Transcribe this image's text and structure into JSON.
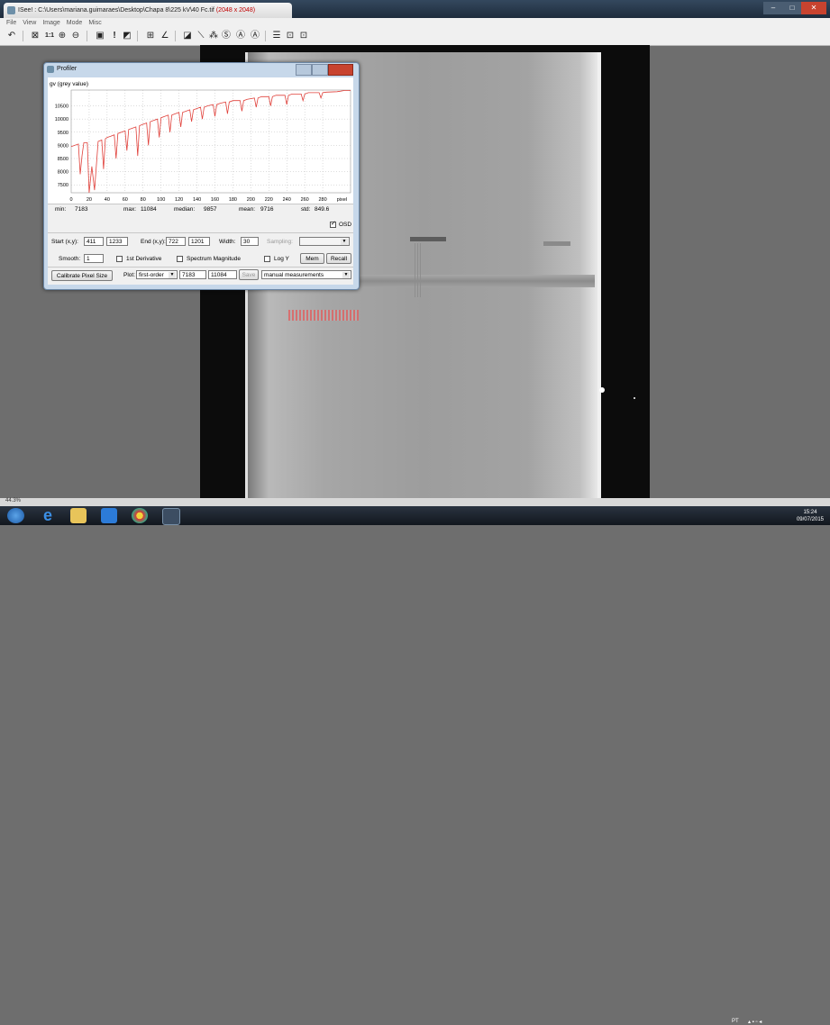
{
  "window": {
    "title_prefix": "ISee! : C:\\Users\\mariana.guimaraes\\Desktop\\Chapa 8\\225 kV\\40 Fc.tif",
    "title_size": "(2048 x 2048)"
  },
  "menu": [
    "File",
    "View",
    "Image",
    "Mode",
    "Misc"
  ],
  "toolbar": {
    "zoom_1to1": "1:1"
  },
  "profiler": {
    "title": "Profiler",
    "y_axis_label": "gv (grey value)",
    "stats": {
      "min_label": "min:",
      "min": "7183",
      "max_label": "max:",
      "max": "11084",
      "median_label": "median:",
      "median": "9857",
      "mean_label": "mean:",
      "mean": "9716",
      "std_label": "std:",
      "std": "849.6"
    },
    "osd_label": "OSD",
    "start_label": "Start (x,y):",
    "start_x": "411",
    "start_y": "1233",
    "end_label": "End (x,y):",
    "end_x": "722",
    "end_y": "1201",
    "width_label": "Width:",
    "width": "30",
    "sampling_label": "Sampling:",
    "smooth_label": "Smooth:",
    "smooth": "1",
    "first_derivative_label": "1st Derivative",
    "spectrum_label": "Spectrum Magnitude",
    "logy_label": "Log Y",
    "mem_button": "Mem",
    "recall_button": "Recall",
    "calibrate_button": "Calibrate Pixel Size",
    "plot_label": "Plot:",
    "plot_mode": "first-order",
    "plot_min": "7183",
    "plot_max": "11084",
    "save_button": "Save",
    "measurements_select": "manual measurements"
  },
  "status": {
    "zoom": "44.3%"
  },
  "taskbar": {
    "lang": "PT",
    "time": "15:24",
    "date": "09/07/2015"
  },
  "chart_data": {
    "type": "line",
    "xlabel": "pixel",
    "ylabel": "gv (grey value)",
    "xlim": [
      0,
      311
    ],
    "ylim": [
      7200,
      11100
    ],
    "x_ticks": [
      0,
      20,
      40,
      60,
      80,
      100,
      120,
      140,
      160,
      180,
      200,
      220,
      240,
      260,
      280
    ],
    "y_ticks": [
      7500,
      8000,
      8500,
      9000,
      9500,
      10000,
      10500
    ],
    "grid": true,
    "series": [
      {
        "color": "#e0403a",
        "x": [
          0,
          8,
          10,
          12,
          14,
          18,
          20,
          23,
          26,
          30,
          34,
          36,
          38,
          40,
          44,
          48,
          50,
          52,
          56,
          60,
          62,
          64,
          68,
          72,
          74,
          76,
          80,
          84,
          86,
          88,
          92,
          96,
          98,
          100,
          104,
          108,
          110,
          112,
          116,
          120,
          122,
          124,
          128,
          132,
          134,
          136,
          140,
          144,
          146,
          148,
          152,
          158,
          160,
          162,
          166,
          172,
          174,
          176,
          180,
          188,
          190,
          192,
          196,
          204,
          206,
          208,
          212,
          220,
          222,
          224,
          228,
          238,
          240,
          242,
          246,
          256,
          258,
          260,
          264,
          276,
          278,
          280,
          284,
          296,
          300,
          304,
          311
        ],
        "y": [
          8950,
          9050,
          7900,
          8600,
          9100,
          9100,
          7200,
          8200,
          7300,
          9150,
          9200,
          8100,
          9250,
          9300,
          9350,
          9400,
          8500,
          9450,
          9500,
          9550,
          8800,
          9600,
          9650,
          9700,
          8600,
          9750,
          9800,
          9850,
          9000,
          9900,
          9950,
          10000,
          9300,
          10050,
          10100,
          10150,
          9500,
          10150,
          10200,
          10250,
          9700,
          10250,
          10300,
          10350,
          9900,
          10350,
          10400,
          10450,
          10000,
          10450,
          10500,
          10550,
          10100,
          10550,
          10600,
          10650,
          10200,
          10650,
          10700,
          10700,
          10300,
          10700,
          10750,
          10800,
          10450,
          10800,
          10850,
          10850,
          10500,
          10850,
          10900,
          10900,
          10550,
          10900,
          10950,
          10950,
          10700,
          10950,
          11000,
          11000,
          10800,
          11000,
          11020,
          11040,
          11060,
          11084,
          11084
        ]
      }
    ]
  }
}
